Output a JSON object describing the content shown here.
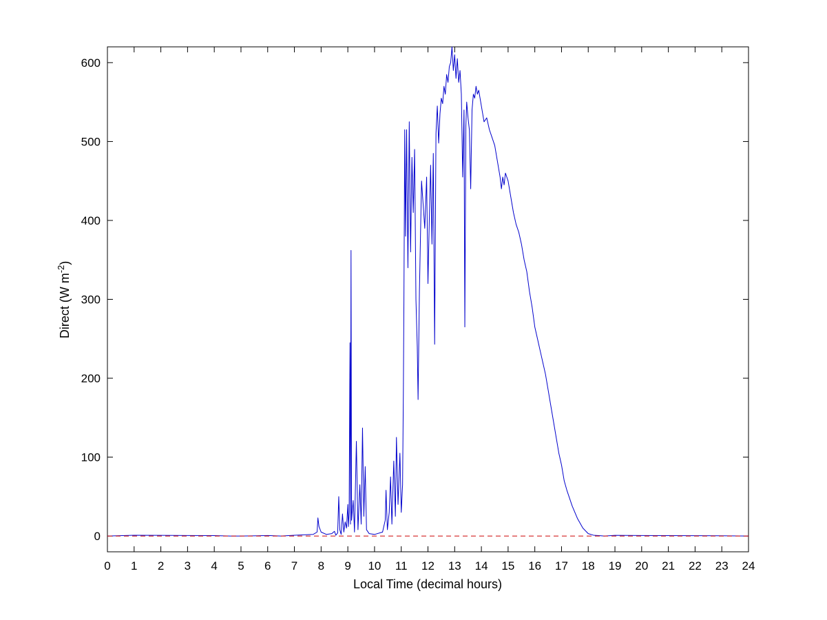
{
  "chart_data": {
    "type": "line",
    "title": "",
    "xlabel": "Local Time (decimal hours)",
    "ylabel_main": "Direct (W m",
    "ylabel_exponent": "-2",
    "ylabel_close": ")",
    "xlim": [
      0,
      24
    ],
    "ylim": [
      -20,
      620
    ],
    "xticks": [
      0,
      1,
      2,
      3,
      4,
      5,
      6,
      7,
      8,
      9,
      10,
      11,
      12,
      13,
      14,
      15,
      16,
      17,
      18,
      19,
      20,
      21,
      22,
      23,
      24
    ],
    "yticks": [
      0,
      100,
      200,
      300,
      400,
      500,
      600
    ],
    "grid": false,
    "legend": "none",
    "series": [
      {
        "color": "#0000cc",
        "points": [
          [
            0,
            0
          ],
          [
            1,
            1
          ],
          [
            2,
            0.8
          ],
          [
            3,
            0.6
          ],
          [
            4,
            0.5
          ],
          [
            4.6,
            0
          ],
          [
            5,
            0
          ],
          [
            5.6,
            0.3
          ],
          [
            6,
            0.6
          ],
          [
            6.5,
            0
          ],
          [
            7,
            1
          ],
          [
            7.7,
            2
          ],
          [
            7.85,
            5
          ],
          [
            7.88,
            23
          ],
          [
            7.92,
            12
          ],
          [
            8.0,
            5
          ],
          [
            8.2,
            2
          ],
          [
            8.4,
            3
          ],
          [
            8.5,
            6
          ],
          [
            8.55,
            1
          ],
          [
            8.62,
            4
          ],
          [
            8.66,
            50
          ],
          [
            8.7,
            8
          ],
          [
            8.75,
            2
          ],
          [
            8.8,
            28
          ],
          [
            8.85,
            5
          ],
          [
            8.9,
            18
          ],
          [
            8.95,
            10
          ],
          [
            9.0,
            40
          ],
          [
            9.02,
            12
          ],
          [
            9.05,
            30
          ],
          [
            9.08,
            245
          ],
          [
            9.1,
            15
          ],
          [
            9.12,
            362
          ],
          [
            9.14,
            20
          ],
          [
            9.2,
            45
          ],
          [
            9.25,
            5
          ],
          [
            9.32,
            120
          ],
          [
            9.38,
            8
          ],
          [
            9.45,
            65
          ],
          [
            9.5,
            15
          ],
          [
            9.55,
            137
          ],
          [
            9.6,
            25
          ],
          [
            9.65,
            88
          ],
          [
            9.7,
            8
          ],
          [
            9.8,
            3
          ],
          [
            10.0,
            2
          ],
          [
            10.3,
            5
          ],
          [
            10.4,
            20
          ],
          [
            10.43,
            58
          ],
          [
            10.48,
            8
          ],
          [
            10.55,
            30
          ],
          [
            10.6,
            75
          ],
          [
            10.65,
            15
          ],
          [
            10.72,
            95
          ],
          [
            10.78,
            25
          ],
          [
            10.82,
            125
          ],
          [
            10.88,
            40
          ],
          [
            10.95,
            105
          ],
          [
            11.0,
            30
          ],
          [
            11.05,
            65
          ],
          [
            11.08,
            185
          ],
          [
            11.1,
            300
          ],
          [
            11.13,
            515
          ],
          [
            11.16,
            380
          ],
          [
            11.2,
            515
          ],
          [
            11.25,
            340
          ],
          [
            11.3,
            525
          ],
          [
            11.35,
            360
          ],
          [
            11.4,
            480
          ],
          [
            11.45,
            410
          ],
          [
            11.5,
            490
          ],
          [
            11.55,
            300
          ],
          [
            11.6,
            240
          ],
          [
            11.63,
            173
          ],
          [
            11.68,
            310
          ],
          [
            11.72,
            380
          ],
          [
            11.76,
            450
          ],
          [
            11.82,
            420
          ],
          [
            11.88,
            390
          ],
          [
            11.95,
            455
          ],
          [
            12.0,
            320
          ],
          [
            12.05,
            400
          ],
          [
            12.1,
            470
          ],
          [
            12.15,
            370
          ],
          [
            12.2,
            485
          ],
          [
            12.25,
            243
          ],
          [
            12.3,
            510
          ],
          [
            12.35,
            545
          ],
          [
            12.4,
            498
          ],
          [
            12.45,
            535
          ],
          [
            12.5,
            555
          ],
          [
            12.55,
            548
          ],
          [
            12.6,
            570
          ],
          [
            12.65,
            560
          ],
          [
            12.7,
            585
          ],
          [
            12.75,
            575
          ],
          [
            12.8,
            595
          ],
          [
            12.85,
            600
          ],
          [
            12.9,
            620
          ],
          [
            12.95,
            590
          ],
          [
            13.0,
            610
          ],
          [
            13.05,
            580
          ],
          [
            13.1,
            605
          ],
          [
            13.15,
            575
          ],
          [
            13.2,
            590
          ],
          [
            13.25,
            560
          ],
          [
            13.3,
            455
          ],
          [
            13.35,
            540
          ],
          [
            13.38,
            265
          ],
          [
            13.42,
            520
          ],
          [
            13.45,
            550
          ],
          [
            13.5,
            530
          ],
          [
            13.55,
            515
          ],
          [
            13.6,
            440
          ],
          [
            13.65,
            540
          ],
          [
            13.7,
            560
          ],
          [
            13.75,
            555
          ],
          [
            13.8,
            570
          ],
          [
            13.85,
            560
          ],
          [
            13.9,
            565
          ],
          [
            13.95,
            555
          ],
          [
            14.0,
            545
          ],
          [
            14.05,
            535
          ],
          [
            14.1,
            525
          ],
          [
            14.2,
            530
          ],
          [
            14.3,
            515
          ],
          [
            14.4,
            505
          ],
          [
            14.5,
            495
          ],
          [
            14.6,
            475
          ],
          [
            14.7,
            455
          ],
          [
            14.75,
            440
          ],
          [
            14.8,
            455
          ],
          [
            14.85,
            445
          ],
          [
            14.9,
            460
          ],
          [
            15.0,
            450
          ],
          [
            15.1,
            430
          ],
          [
            15.2,
            410
          ],
          [
            15.3,
            395
          ],
          [
            15.4,
            385
          ],
          [
            15.5,
            370
          ],
          [
            15.6,
            350
          ],
          [
            15.7,
            335
          ],
          [
            15.8,
            310
          ],
          [
            15.9,
            290
          ],
          [
            16.0,
            265
          ],
          [
            16.1,
            250
          ],
          [
            16.2,
            235
          ],
          [
            16.3,
            220
          ],
          [
            16.4,
            205
          ],
          [
            16.5,
            185
          ],
          [
            16.6,
            165
          ],
          [
            16.7,
            145
          ],
          [
            16.8,
            125
          ],
          [
            16.9,
            105
          ],
          [
            17.0,
            90
          ],
          [
            17.1,
            70
          ],
          [
            17.2,
            58
          ],
          [
            17.4,
            38
          ],
          [
            17.6,
            22
          ],
          [
            17.8,
            10
          ],
          [
            18.0,
            3
          ],
          [
            18.2,
            1
          ],
          [
            18.4,
            0.5
          ],
          [
            18.6,
            0
          ],
          [
            19,
            0.8
          ],
          [
            20,
            0.6
          ],
          [
            21,
            0.5
          ],
          [
            22,
            0.4
          ],
          [
            23,
            0.3
          ],
          [
            24,
            0
          ]
        ]
      },
      {
        "color": "#cc0000",
        "style": "dashed",
        "points": [
          [
            0,
            0
          ],
          [
            24,
            0
          ]
        ]
      }
    ]
  }
}
